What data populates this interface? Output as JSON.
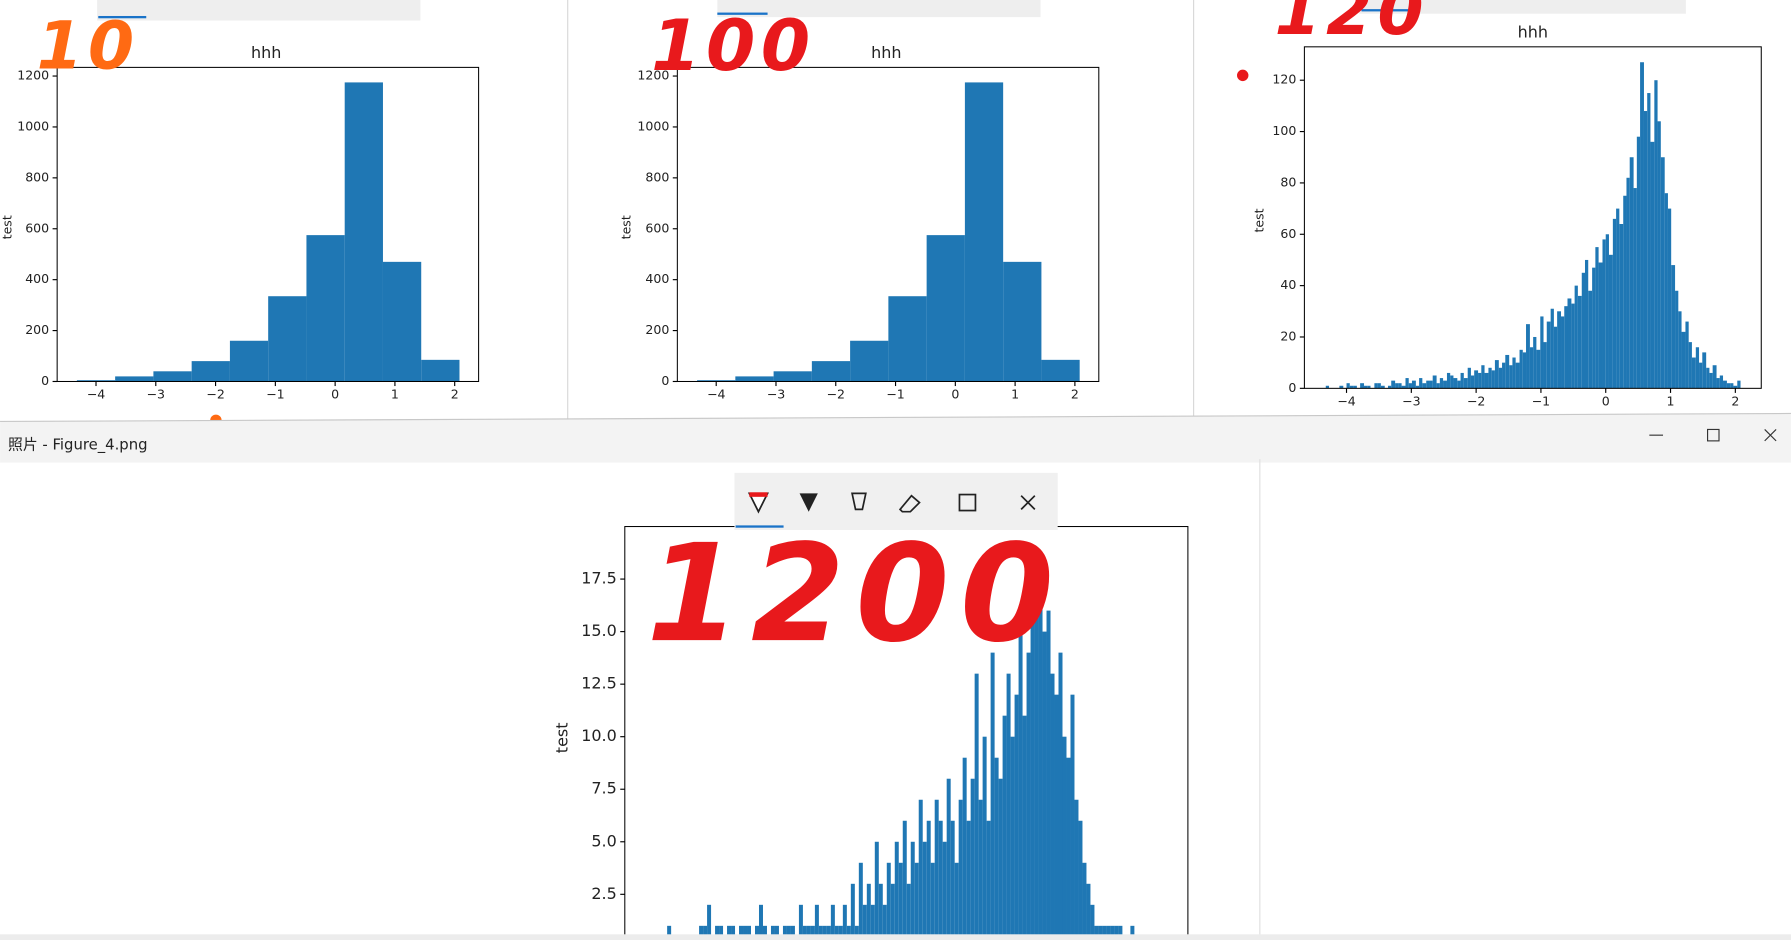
{
  "window": {
    "title": "照片 - Figure_4.png"
  },
  "chart_data": [
    {
      "type": "histogram",
      "title": "hhh",
      "ylabel": "test",
      "annotation": "10",
      "annotation_color": "#ff6a13",
      "color": "#1f77b4",
      "bins": [
        -4.32,
        -3.68,
        -3.04,
        -2.4,
        -1.76,
        -1.12,
        -0.48,
        0.16,
        0.8,
        1.44,
        2.08
      ],
      "values": [
        5,
        20,
        40,
        80,
        160,
        335,
        575,
        1175,
        470,
        85
      ],
      "xlim": [
        -4.65,
        2.4
      ],
      "ylim": [
        0,
        1234
      ],
      "xticks": [
        {
          "value": -4,
          "label": "−4"
        },
        {
          "value": -3,
          "label": "−3"
        },
        {
          "value": -2,
          "label": "−2"
        },
        {
          "value": -1,
          "label": "−1"
        },
        0,
        1,
        2
      ],
      "yticks": [
        0,
        200,
        400,
        600,
        800,
        1000,
        1200
      ]
    },
    {
      "type": "histogram",
      "title": "hhh",
      "ylabel": "test",
      "annotation": "100",
      "annotation_color": "#e8191c",
      "color": "#1f77b4",
      "bins": [
        -4.32,
        -3.68,
        -3.04,
        -2.4,
        -1.76,
        -1.12,
        -0.48,
        0.16,
        0.8,
        1.44,
        2.08
      ],
      "values": [
        5,
        20,
        40,
        80,
        160,
        335,
        575,
        1175,
        470,
        85
      ],
      "xlim": [
        -4.65,
        2.4
      ],
      "ylim": [
        0,
        1234
      ],
      "xticks": [
        {
          "value": -4,
          "label": "−4"
        },
        {
          "value": -3,
          "label": "−3"
        },
        {
          "value": -2,
          "label": "−2"
        },
        {
          "value": -1,
          "label": "−1"
        },
        0,
        1,
        2
      ],
      "yticks": [
        0,
        200,
        400,
        600,
        800,
        1000,
        1200
      ]
    },
    {
      "type": "histogram",
      "title": "hhh",
      "ylabel": "test",
      "annotation": "120",
      "annotation_color": "#e8191c",
      "color": "#1f77b4",
      "bins": [
        -4.32,
        -4.27,
        -4.21,
        -4.16,
        -4.11,
        -4.05,
        -4,
        -3.95,
        -3.89,
        -3.84,
        -3.79,
        -3.73,
        -3.68,
        -3.63,
        -3.57,
        -3.52,
        -3.47,
        -3.41,
        -3.36,
        -3.31,
        -3.25,
        -3.2,
        -3.15,
        -3.09,
        -3.04,
        -2.99,
        -2.93,
        -2.88,
        -2.83,
        -2.77,
        -2.72,
        -2.67,
        -2.61,
        -2.56,
        -2.51,
        -2.45,
        -2.4,
        -2.35,
        -2.29,
        -2.24,
        -2.19,
        -2.13,
        -2.08,
        -2.03,
        -1.97,
        -1.92,
        -1.87,
        -1.81,
        -1.76,
        -1.71,
        -1.65,
        -1.6,
        -1.55,
        -1.49,
        -1.44,
        -1.39,
        -1.33,
        -1.28,
        -1.23,
        -1.17,
        -1.12,
        -1.07,
        -1.01,
        -0.96,
        -0.91,
        -0.85,
        -0.8,
        -0.75,
        -0.69,
        -0.64,
        -0.59,
        -0.53,
        -0.48,
        -0.43,
        -0.37,
        -0.32,
        -0.27,
        -0.21,
        -0.16,
        -0.11,
        -0.05,
        0,
        0.05,
        0.11,
        0.16,
        0.21,
        0.27,
        0.32,
        0.37,
        0.43,
        0.48,
        0.53,
        0.59,
        0.64,
        0.69,
        0.75,
        0.8,
        0.85,
        0.91,
        0.96,
        1.01,
        1.07,
        1.12,
        1.17,
        1.23,
        1.28,
        1.33,
        1.39,
        1.44,
        1.49,
        1.55,
        1.6,
        1.65,
        1.71,
        1.76,
        1.81,
        1.87,
        1.92,
        1.97,
        2.03,
        2.08
      ],
      "values": [
        1,
        0,
        0,
        0,
        1,
        0,
        2,
        1,
        1,
        0,
        2,
        1,
        1,
        0,
        2,
        2,
        1,
        0,
        1,
        3,
        2,
        2,
        1,
        4,
        2,
        3,
        1,
        4,
        2,
        3,
        3,
        5,
        2,
        4,
        3,
        6,
        5,
        4,
        3,
        6,
        4,
        8,
        5,
        7,
        6,
        9,
        6,
        8,
        7,
        11,
        8,
        10,
        13,
        9,
        12,
        10,
        15,
        14,
        25,
        16,
        20,
        15,
        28,
        18,
        26,
        31,
        24,
        30,
        28,
        32,
        35,
        33,
        40,
        36,
        45,
        50,
        38,
        47,
        55,
        49,
        58,
        60,
        52,
        66,
        70,
        64,
        75,
        82,
        90,
        78,
        98,
        127,
        108,
        115,
        96,
        120,
        104,
        90,
        76,
        70,
        48,
        38,
        30,
        22,
        26,
        18,
        12,
        16,
        10,
        14,
        8,
        6,
        9,
        4,
        5,
        3,
        2,
        2,
        1,
        3
      ],
      "xlim": [
        -4.65,
        2.4
      ],
      "ylim": [
        0,
        133
      ],
      "xticks": [
        {
          "value": -4,
          "label": "−4"
        },
        {
          "value": -3,
          "label": "−3"
        },
        {
          "value": -2,
          "label": "−2"
        },
        {
          "value": -1,
          "label": "−1"
        },
        0,
        1,
        2
      ],
      "yticks": [
        0,
        20,
        40,
        60,
        80,
        100,
        120
      ]
    },
    {
      "type": "histogram",
      "ylabel": "test",
      "annotation": "1200",
      "annotation_color": "#e8191c",
      "color": "#1f77b4",
      "bins": [
        -4.32,
        -4.27,
        -4.22,
        -4.17,
        -4.12,
        -4.07,
        -4.02,
        -3.97,
        -3.92,
        -3.87,
        -3.82,
        -3.77,
        -3.72,
        -3.67,
        -3.62,
        -3.57,
        -3.52,
        -3.47,
        -3.42,
        -3.37,
        -3.32,
        -3.27,
        -3.22,
        -3.17,
        -3.12,
        -3.07,
        -3.02,
        -2.97,
        -2.92,
        -2.87,
        -2.82,
        -2.77,
        -2.72,
        -2.67,
        -2.62,
        -2.57,
        -2.52,
        -2.47,
        -2.42,
        -2.37,
        -2.32,
        -2.27,
        -2.22,
        -2.17,
        -2.12,
        -2.07,
        -2.02,
        -1.97,
        -1.92,
        -1.87,
        -1.82,
        -1.77,
        -1.72,
        -1.67,
        -1.62,
        -1.57,
        -1.52,
        -1.47,
        -1.42,
        -1.37,
        -1.32,
        -1.27,
        -1.22,
        -1.17,
        -1.12,
        -1.07,
        -1.02,
        -0.97,
        -0.92,
        -0.87,
        -0.82,
        -0.77,
        -0.72,
        -0.67,
        -0.62,
        -0.57,
        -0.52,
        -0.47,
        -0.42,
        -0.37,
        -0.32,
        -0.27,
        -0.22,
        -0.17,
        -0.12,
        -0.07,
        -0.02,
        0.03,
        0.08,
        0.13,
        0.18,
        0.23,
        0.28,
        0.33,
        0.38,
        0.43,
        0.48,
        0.53,
        0.58,
        0.63,
        0.68,
        0.73,
        0.78,
        0.83,
        0.88,
        0.93,
        0.98,
        1.03,
        1.08,
        1.13,
        1.18,
        1.23,
        1.28,
        1.33,
        1.38,
        1.43,
        1.48,
        1.53,
        1.58,
        1.63,
        1.68,
        1.73,
        1.78,
        1.83,
        1.88,
        1.93,
        1.98,
        2.03,
        2.08
      ],
      "values": [
        0,
        0,
        0,
        0,
        1,
        0,
        0,
        0,
        0,
        0,
        0,
        0,
        1,
        1,
        2,
        0,
        1,
        1,
        0,
        1,
        1,
        0,
        1,
        1,
        1,
        0,
        1,
        2,
        1,
        0,
        1,
        1,
        0,
        1,
        1,
        1,
        0,
        2,
        1,
        1,
        1,
        2,
        1,
        1,
        1,
        2,
        1,
        1,
        2,
        1,
        3,
        1,
        4,
        2,
        3,
        2,
        5,
        3,
        2,
        4,
        3,
        5,
        4,
        6,
        3,
        5,
        4,
        7,
        5,
        6,
        4,
        7,
        6,
        5,
        8,
        6,
        4,
        7,
        9,
        6,
        8,
        13,
        7,
        10,
        6,
        14,
        9,
        8,
        11,
        13,
        10,
        12,
        16,
        11,
        14,
        19,
        17,
        18,
        15,
        16,
        13,
        12,
        14,
        10,
        9,
        12,
        7,
        6,
        4,
        3,
        2,
        1,
        1,
        1,
        1,
        1,
        1,
        1,
        0,
        0,
        1,
        0,
        0,
        0,
        0,
        0,
        0,
        0
      ],
      "xlim": [
        -4.65,
        2.4
      ],
      "ylim": [
        0,
        20
      ],
      "yticks": [
        2.5,
        {
          "value": 5,
          "label": "5.0"
        },
        7.5,
        {
          "value": 10,
          "label": "10.0"
        },
        12.5,
        {
          "value": 15,
          "label": "15.0"
        },
        17.5
      ]
    }
  ]
}
